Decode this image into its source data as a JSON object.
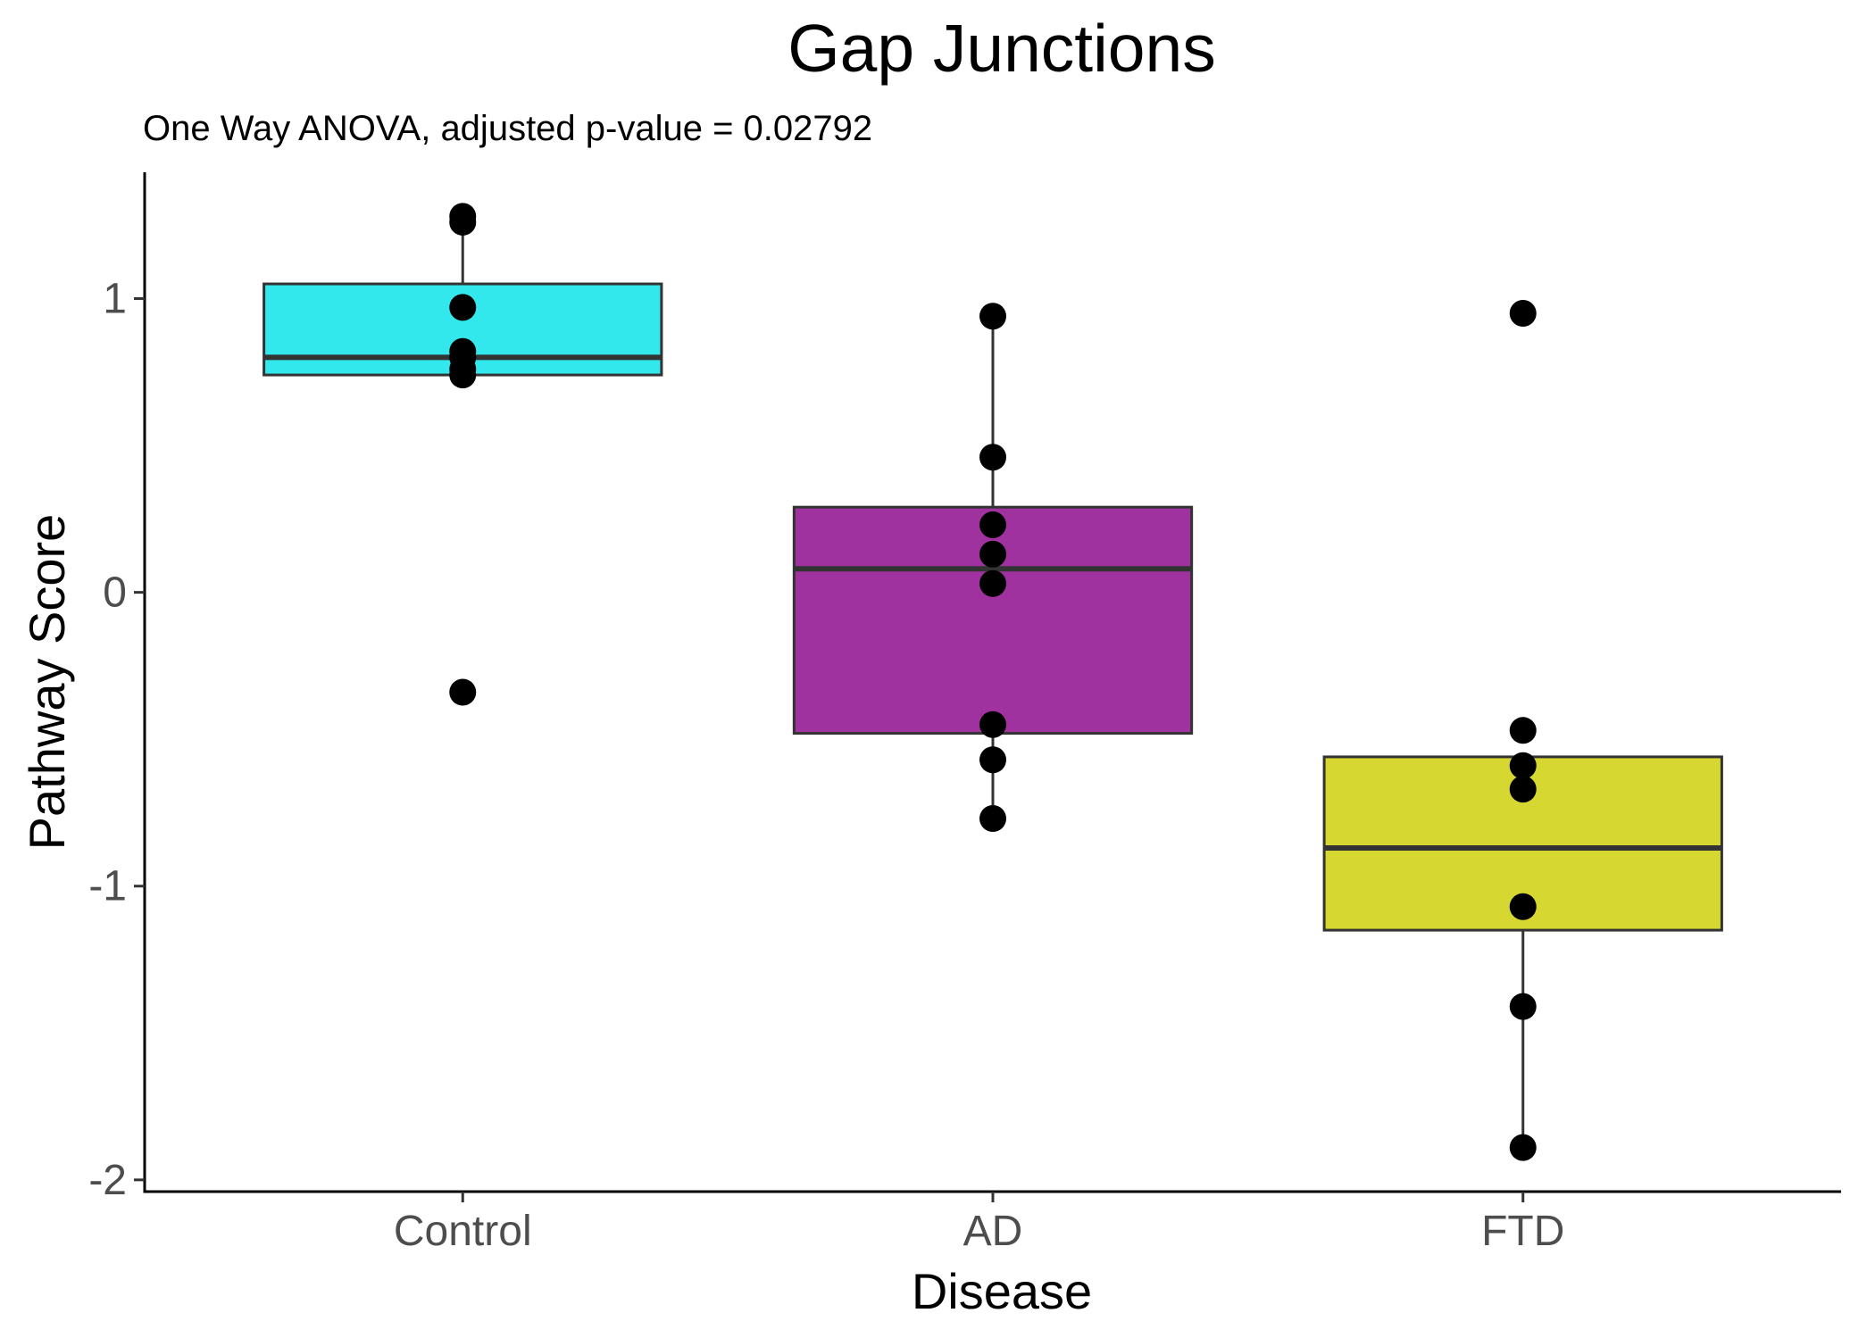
{
  "chart_data": {
    "type": "boxplot",
    "title": "Gap Junctions",
    "subtitle": "One Way ANOVA, adjusted p-value = 0.02792",
    "xlabel": "Disease",
    "ylabel": "Pathway Score",
    "categories": [
      "Control",
      "AD",
      "FTD"
    ],
    "ylim": [
      -2.04,
      1.43
    ],
    "yticks": [
      1,
      0,
      -1,
      -2
    ],
    "ytick_labels": [
      "1",
      "0",
      "-1",
      "-2"
    ],
    "grid": false,
    "legend": "none",
    "groups": [
      {
        "name": "Control",
        "color": "#33E8EC",
        "q1": 0.74,
        "median": 0.8,
        "q3": 1.05,
        "whisker_low": 0.74,
        "whisker_high": 1.28,
        "points": [
          1.28,
          1.26,
          0.97,
          0.82,
          0.8,
          0.76,
          0.74,
          -0.34
        ]
      },
      {
        "name": "AD",
        "color": "#A032A0",
        "q1": -0.48,
        "median": 0.08,
        "q3": 0.29,
        "whisker_low": -0.77,
        "whisker_high": 0.94,
        "points": [
          0.94,
          0.46,
          0.23,
          0.13,
          0.03,
          -0.45,
          -0.57,
          -0.77
        ]
      },
      {
        "name": "FTD",
        "color": "#D7D732",
        "q1": -1.15,
        "median": -0.87,
        "q3": -0.56,
        "whisker_low": -1.89,
        "whisker_high": -0.56,
        "points": [
          0.95,
          -0.47,
          -0.59,
          -0.67,
          -1.07,
          -1.41,
          -1.89
        ]
      }
    ]
  }
}
